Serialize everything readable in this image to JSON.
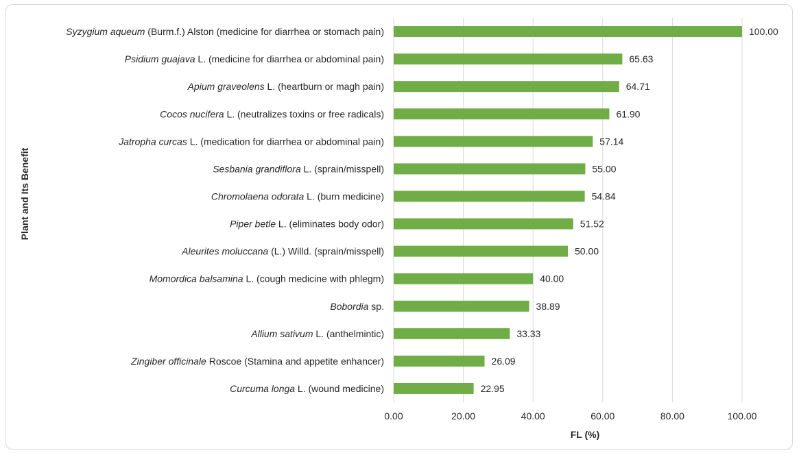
{
  "chart_data": {
    "type": "bar",
    "orientation": "horizontal",
    "xlabel": "FL (%)",
    "ylabel": "Plant and Its Benefit",
    "xlim": [
      0,
      100
    ],
    "xticks": [
      "0.00",
      "20.00",
      "40.00",
      "60.00",
      "80.00",
      "100.00"
    ],
    "grid": "vertical",
    "bar_color": "#70ad47",
    "categories": [
      {
        "italic": "Syzygium aqueum",
        "rest": " (Burm.f.) Alston (medicine for diarrhea or stomach pain)"
      },
      {
        "italic": "Psidium guajava",
        "rest": " L. (medicine for diarrhea or abdominal pain)"
      },
      {
        "italic": "Apium graveolens",
        "rest": " L. (heartburn or magh pain)"
      },
      {
        "italic": "Cocos nucifera",
        "rest": " L. (neutralizes toxins or free radicals)"
      },
      {
        "italic": "Jatropha curcas",
        "rest": " L. (medication for diarrhea or abdominal pain)"
      },
      {
        "italic": "Sesbania grandiflora",
        "rest": " L. (sprain/misspell)"
      },
      {
        "italic": "Chromolaena odorata",
        "rest": " L. (burn medicine)"
      },
      {
        "italic": "Piper betle",
        "rest": " L. (eliminates body odor)"
      },
      {
        "italic": "Aleurites moluccana",
        "rest": " (L.) Willd. (sprain/misspell)"
      },
      {
        "italic": "Momordica balsamina",
        "rest": " L. (cough medicine with phlegm)"
      },
      {
        "italic": "Bobordia",
        "rest": " sp."
      },
      {
        "italic": "Allium sativum",
        "rest": " L. (anthelmintic)"
      },
      {
        "italic": "Zingiber officinale",
        "rest": " Roscoe (Stamina and appetite enhancer)"
      },
      {
        "italic": "Curcuma longa",
        "rest": " L. (wound medicine)"
      }
    ],
    "values": [
      100.0,
      65.63,
      64.71,
      61.9,
      57.14,
      55.0,
      54.84,
      51.52,
      50.0,
      40.0,
      38.89,
      33.33,
      26.09,
      22.95
    ],
    "value_labels": [
      "100.00",
      "65.63",
      "64.71",
      "61.90",
      "57.14",
      "55.00",
      "54.84",
      "51.52",
      "50.00",
      "40.00",
      "38.89",
      "33.33",
      "26.09",
      "22.95"
    ]
  }
}
